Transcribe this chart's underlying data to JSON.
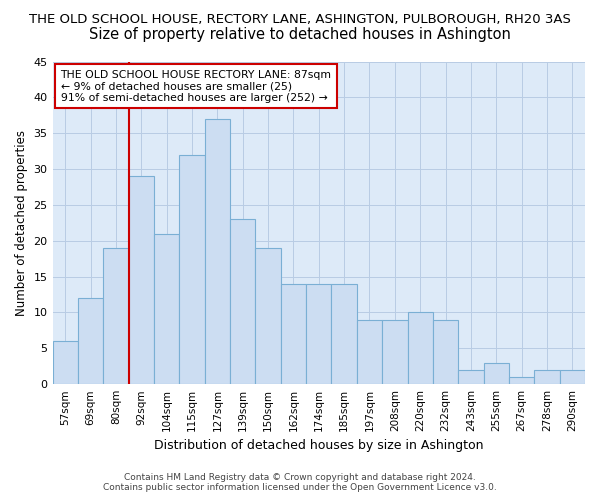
{
  "title": "THE OLD SCHOOL HOUSE, RECTORY LANE, ASHINGTON, PULBOROUGH, RH20 3AS",
  "subtitle": "Size of property relative to detached houses in Ashington",
  "xlabel": "Distribution of detached houses by size in Ashington",
  "ylabel": "Number of detached properties",
  "categories": [
    "57sqm",
    "69sqm",
    "80sqm",
    "92sqm",
    "104sqm",
    "115sqm",
    "127sqm",
    "139sqm",
    "150sqm",
    "162sqm",
    "174sqm",
    "185sqm",
    "197sqm",
    "208sqm",
    "220sqm",
    "232sqm",
    "243sqm",
    "255sqm",
    "267sqm",
    "278sqm",
    "290sqm"
  ],
  "values": [
    6,
    12,
    19,
    29,
    21,
    32,
    37,
    23,
    19,
    14,
    14,
    14,
    9,
    9,
    10,
    9,
    2,
    3,
    1,
    2,
    2
  ],
  "bar_color": "#ccddf2",
  "bar_edge_color": "#7aafd4",
  "vline_index": 2.5,
  "vline_color": "#cc0000",
  "ylim": [
    0,
    45
  ],
  "yticks": [
    0,
    5,
    10,
    15,
    20,
    25,
    30,
    35,
    40,
    45
  ],
  "annotation_title": "THE OLD SCHOOL HOUSE RECTORY LANE: 87sqm",
  "annotation_line1": "← 9% of detached houses are smaller (25)",
  "annotation_line2": "91% of semi-detached houses are larger (252) →",
  "annotation_box_color": "#ffffff",
  "annotation_box_edge": "#cc0000",
  "footer1": "Contains HM Land Registry data © Crown copyright and database right 2024.",
  "footer2": "Contains public sector information licensed under the Open Government Licence v3.0.",
  "title_fontsize": 9.5,
  "subtitle_fontsize": 10.5,
  "ax_bg_color": "#ddeaf8",
  "background_color": "#ffffff",
  "grid_color": "#b8cce4"
}
